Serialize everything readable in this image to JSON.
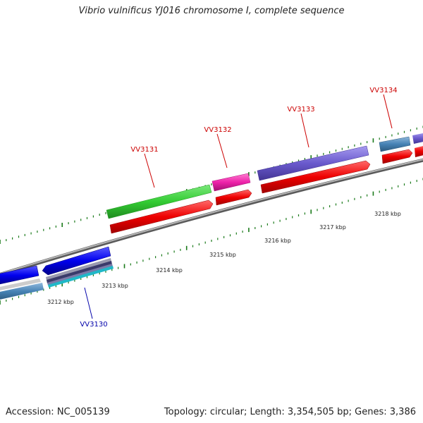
{
  "title": "Vibrio vulnificus YJ016 chromosome I, complete sequence",
  "accession_text": "Accession: NC_005139",
  "topology_text": "Topology: circular; Length: 3,354,505 bp; Genes: 3,386",
  "scale_labels": [
    "3212 kbp",
    "3213 kbp",
    "3214 kbp",
    "3215 kbp",
    "3216 kbp",
    "3217 kbp",
    "3218 kbp"
  ],
  "genes": [
    {
      "label": "VV3130",
      "color": "#0000aa",
      "track": "lower"
    },
    {
      "label": "VV3131",
      "color": "#cc0000",
      "track": "upper"
    },
    {
      "label": "VV3132",
      "color": "#cc0000",
      "track": "upper"
    },
    {
      "label": "VV3133",
      "color": "#cc0000",
      "track": "upper"
    },
    {
      "label": "VV3134",
      "color": "#cc0000",
      "track": "upper"
    }
  ],
  "colors": {
    "cds_red": "#ee0000",
    "gene_blue": "#0000ee",
    "green": "#33cc33",
    "magenta": "#ee22aa",
    "purple": "#6a5acd",
    "steelblue": "#4682b4",
    "tick_green": "#1a7a1a",
    "backbone": "#808080"
  }
}
